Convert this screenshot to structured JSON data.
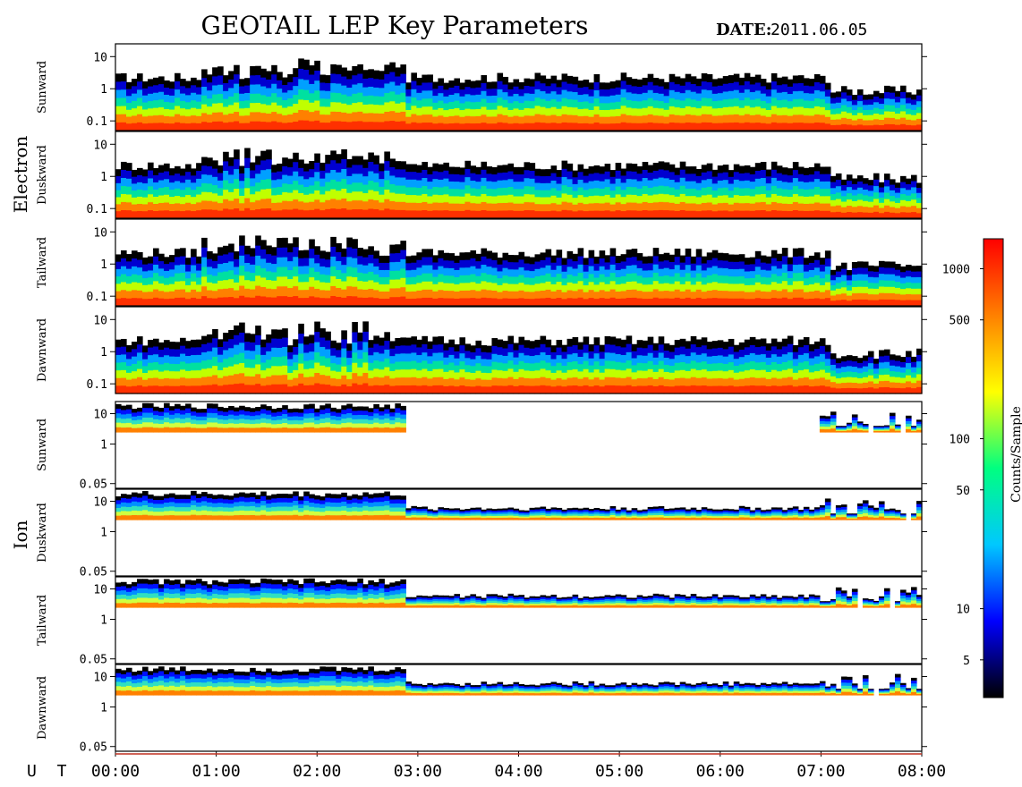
{
  "title": "GEOTAIL LEP Key Parameters",
  "date_label": "DATE:",
  "date_value": "2011.06.05",
  "group_labels": {
    "electron": "Electron",
    "ion": "Ion"
  },
  "ut_label": "U T",
  "colorbar": {
    "label": "Counts/Sample",
    "scale": "log",
    "range": [
      3,
      1500
    ],
    "ticks": [
      "1000",
      "500",
      "100",
      "50",
      "10",
      "5"
    ],
    "tick_values": [
      1000,
      500,
      100,
      50,
      10,
      5
    ],
    "colors": [
      "#000000",
      "#0000ff",
      "#00c8ff",
      "#00ff80",
      "#ffff00",
      "#ff8000",
      "#ff0000"
    ]
  },
  "chart_data": {
    "type": "heatmap",
    "x_axis": {
      "label": "U T",
      "range": [
        "00:00",
        "08:00"
      ],
      "ticks": [
        "00:00",
        "01:00",
        "02:00",
        "03:00",
        "04:00",
        "05:00",
        "06:00",
        "07:00",
        "08:00"
      ]
    },
    "panels": [
      {
        "group": "Electron",
        "name": "Sunward",
        "y_ticks": [
          "10",
          "1",
          "0.1"
        ],
        "y_values": [
          10,
          1,
          0.1
        ],
        "y_scale": "log"
      },
      {
        "group": "Electron",
        "name": "Duskward",
        "y_ticks": [
          "10",
          "1",
          "0.1"
        ],
        "y_values": [
          10,
          1,
          0.1
        ],
        "y_scale": "log"
      },
      {
        "group": "Electron",
        "name": "Tailward",
        "y_ticks": [
          "10",
          "1",
          "0.1"
        ],
        "y_values": [
          10,
          1,
          0.1
        ],
        "y_scale": "log"
      },
      {
        "group": "Electron",
        "name": "Dawnward",
        "y_ticks": [
          "10",
          "1",
          "0.1"
        ],
        "y_values": [
          10,
          1,
          0.1
        ],
        "y_scale": "log"
      },
      {
        "group": "Ion",
        "name": "Sunward",
        "y_ticks": [
          "10",
          "1",
          "0.05"
        ],
        "y_values": [
          10,
          1,
          0.05
        ],
        "y_scale": "log"
      },
      {
        "group": "Ion",
        "name": "Duskward",
        "y_ticks": [
          "10",
          "1",
          "0.05"
        ],
        "y_values": [
          10,
          1,
          0.05
        ],
        "y_scale": "log"
      },
      {
        "group": "Ion",
        "name": "Tailward",
        "y_ticks": [
          "10",
          "1",
          "0.05"
        ],
        "y_values": [
          10,
          1,
          0.05
        ],
        "y_scale": "log"
      },
      {
        "group": "Ion",
        "name": "Dawnward",
        "y_ticks": [
          "10",
          "1",
          "0.05"
        ],
        "y_values": [
          10,
          1,
          0.05
        ],
        "y_scale": "log"
      }
    ]
  }
}
